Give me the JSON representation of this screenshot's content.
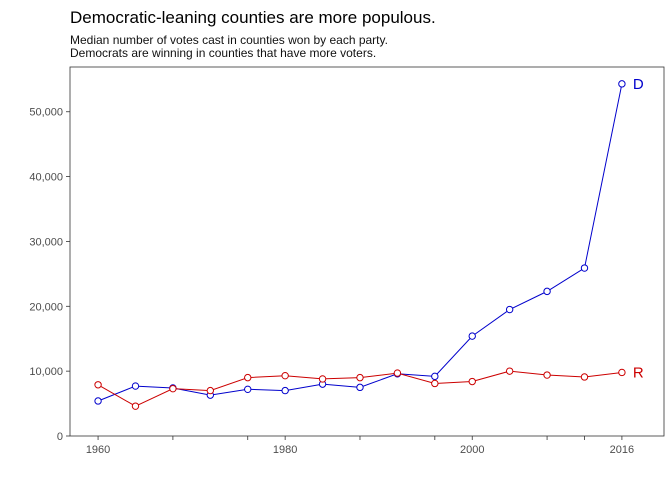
{
  "chart_data": {
    "type": "line",
    "title": "Democratic-leaning counties are more populous.",
    "subtitle_lines": [
      "Median number of votes cast in counties won by each party.",
      "Democrats are winning in counties that have more voters."
    ],
    "xlabel": "",
    "ylabel": "",
    "xlim": [
      1957,
      2020.5
    ],
    "ylim": [
      0,
      56900
    ],
    "x_ticks": [
      1960,
      1980,
      2000,
      2016
    ],
    "x_minor_ticks": [
      1968,
      1976,
      1988,
      1996,
      2008,
      2012
    ],
    "y_ticks": [
      0,
      10000,
      20000,
      30000,
      40000,
      50000
    ],
    "y_tick_labels": [
      "0",
      "10,000",
      "20,000",
      "30,000",
      "40,000",
      "50,000"
    ],
    "grid": false,
    "legend": "direct labels at line ends",
    "x": [
      1960,
      1964,
      1968,
      1972,
      1976,
      1980,
      1984,
      1988,
      1992,
      1996,
      2000,
      2004,
      2008,
      2012,
      2016
    ],
    "series": [
      {
        "name": "D",
        "color": "#0000cc",
        "values": [
          5400,
          7700,
          7400,
          6300,
          7200,
          7000,
          8000,
          7500,
          9600,
          9200,
          15400,
          19500,
          22300,
          25900,
          54300
        ]
      },
      {
        "name": "R",
        "color": "#cc0000",
        "values": [
          7900,
          4600,
          7300,
          7000,
          9000,
          9300,
          8800,
          9000,
          9700,
          8100,
          8400,
          10000,
          9400,
          9100,
          9800
        ]
      }
    ]
  }
}
